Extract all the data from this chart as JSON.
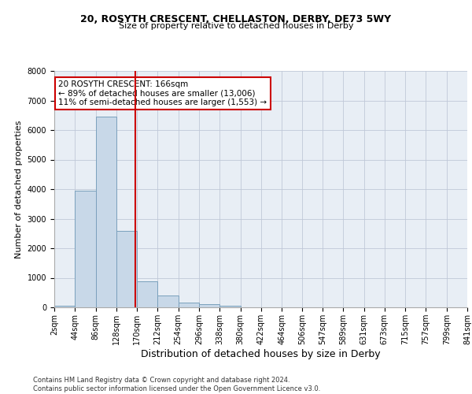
{
  "title_line1": "20, ROSYTH CRESCENT, CHELLASTON, DERBY, DE73 5WY",
  "title_line2": "Size of property relative to detached houses in Derby",
  "xlabel": "Distribution of detached houses by size in Derby",
  "ylabel": "Number of detached properties",
  "footnote": "Contains HM Land Registry data © Crown copyright and database right 2024.\nContains public sector information licensed under the Open Government Licence v3.0.",
  "bar_edges": [
    2,
    44,
    86,
    128,
    170,
    212,
    254,
    296,
    338,
    380,
    422,
    464,
    506,
    547,
    589,
    631,
    673,
    715,
    757,
    799,
    841
  ],
  "bar_heights": [
    50,
    3950,
    6450,
    2600,
    880,
    390,
    150,
    100,
    60,
    0,
    0,
    0,
    0,
    0,
    0,
    0,
    0,
    0,
    0,
    0
  ],
  "bar_color": "#c8d8e8",
  "bar_edgecolor": "#7aa0bc",
  "property_size": 166,
  "vline_color": "#cc0000",
  "annotation_text": "20 ROSYTH CRESCENT: 166sqm\n← 89% of detached houses are smaller (13,006)\n11% of semi-detached houses are larger (1,553) →",
  "annotation_box_color": "#cc0000",
  "ylim": [
    0,
    8000
  ],
  "yticks": [
    0,
    1000,
    2000,
    3000,
    4000,
    5000,
    6000,
    7000,
    8000
  ],
  "grid_color": "#c0c8d8",
  "bg_color": "#e8eef5",
  "title_fontsize": 9,
  "subtitle_fontsize": 8,
  "ylabel_fontsize": 8,
  "xlabel_fontsize": 9,
  "tick_fontsize": 7,
  "footnote_fontsize": 6,
  "annotation_fontsize": 7.5
}
